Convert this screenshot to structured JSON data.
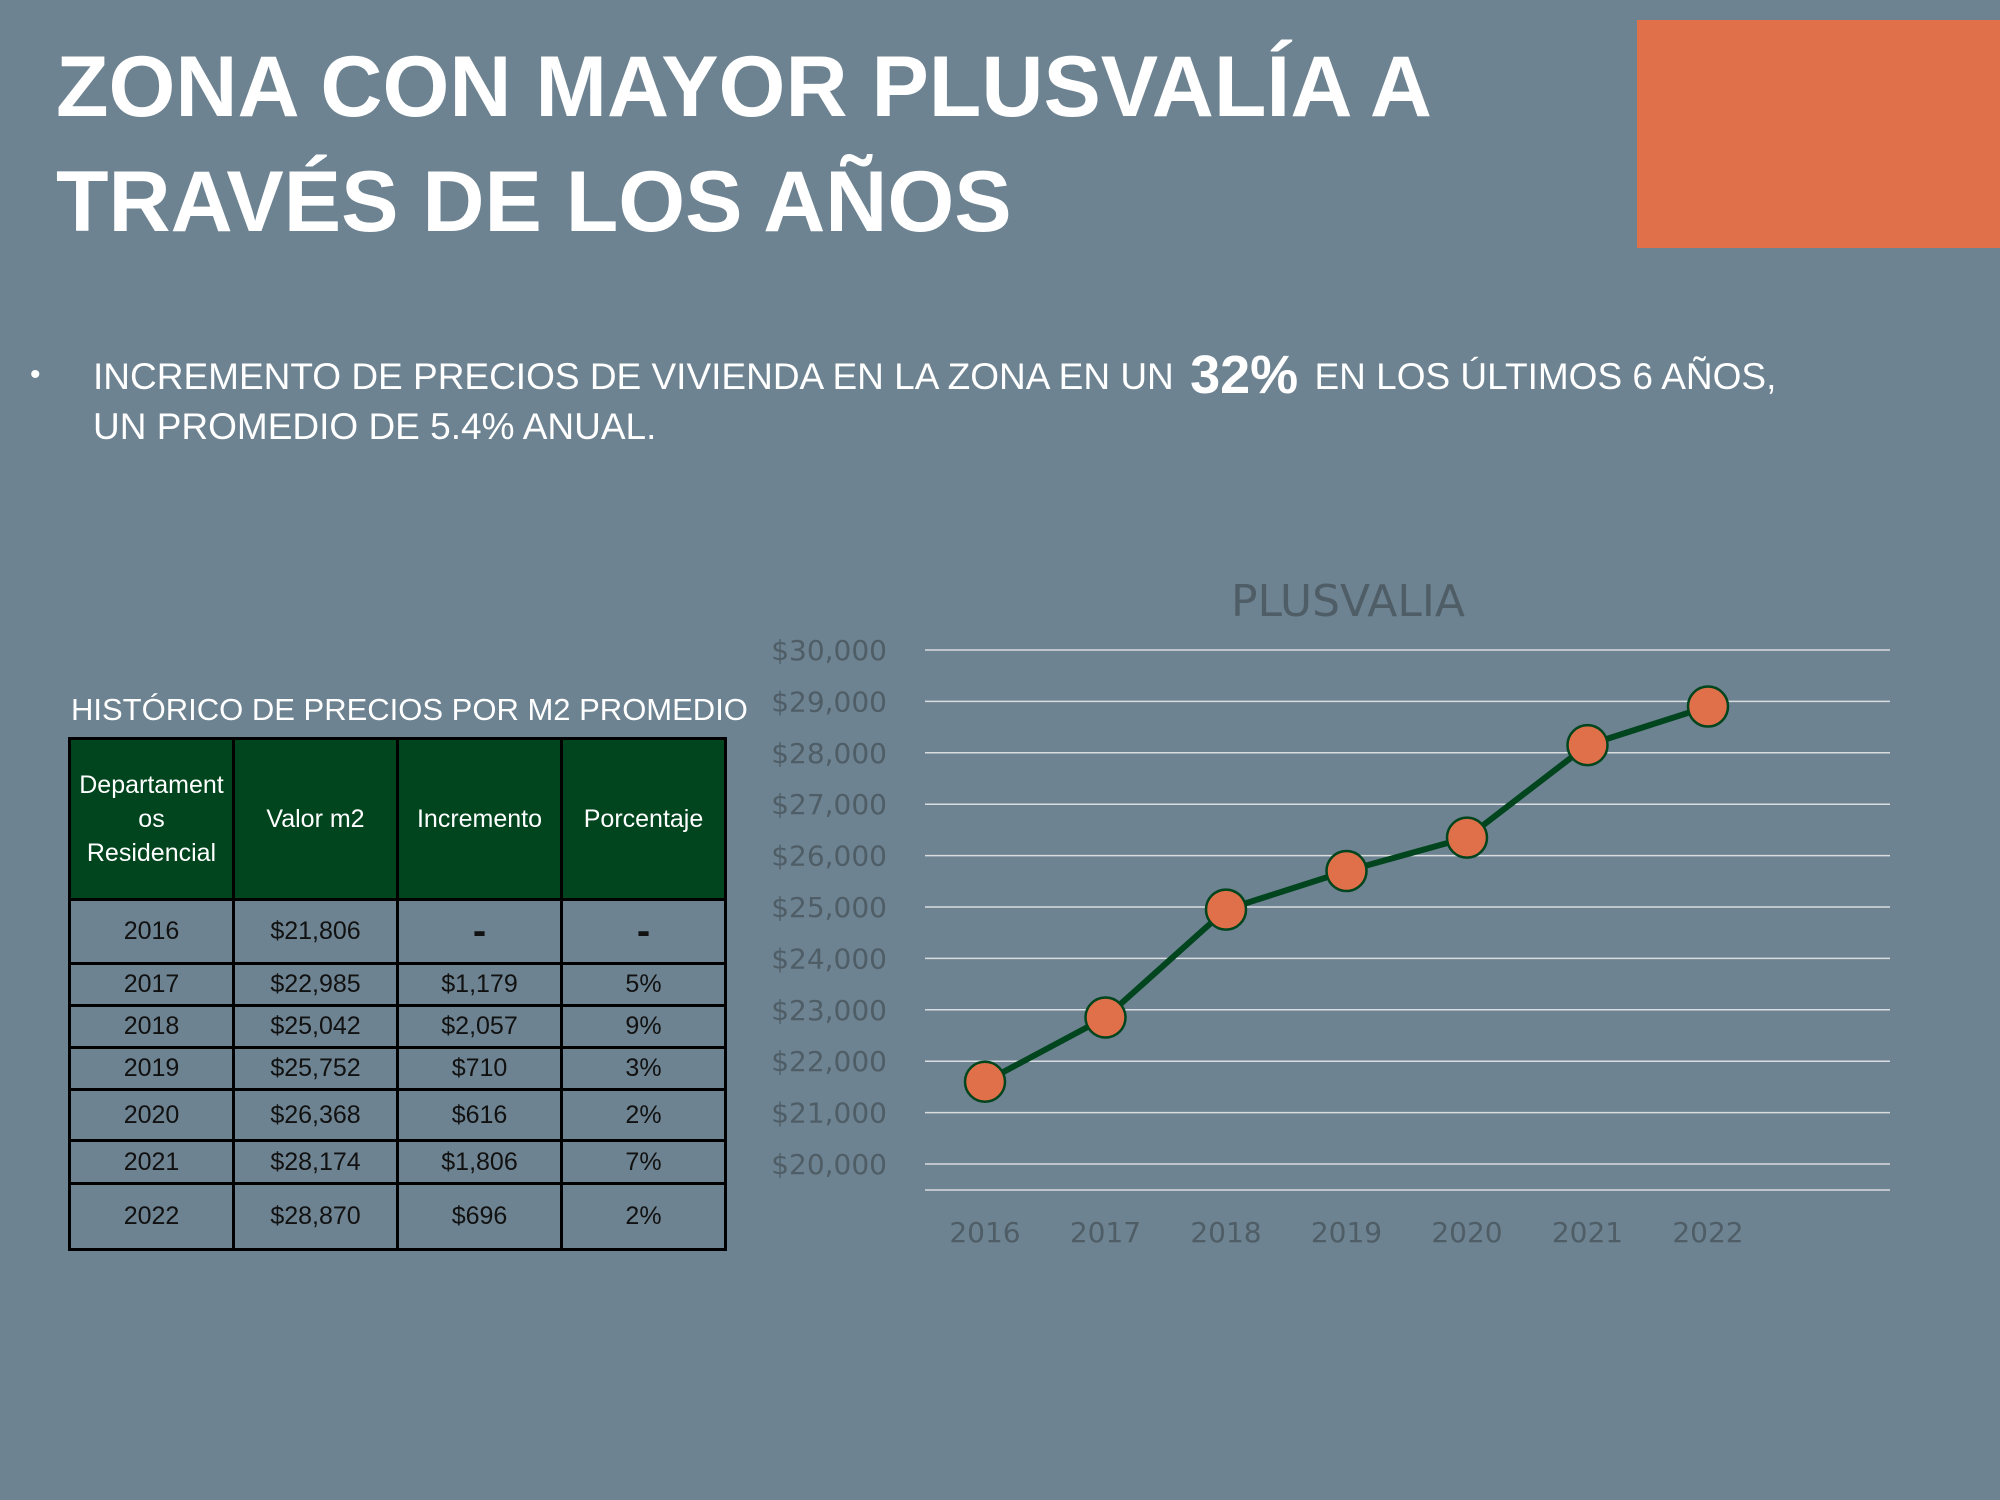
{
  "slide": {
    "title_line1": "ZONA CON MAYOR PLUSVALÍA A",
    "title_line2": "TRAVÉS DE LOS AÑOS",
    "accent_color": "#e07049"
  },
  "bullet": {
    "marker": "•",
    "text_before": "INCREMENTO DE PRECIOS DE VIVIENDA EN LA ZONA EN UN",
    "highlight": "32%",
    "text_after": "EN LOS ÚLTIMOS 6 AÑOS,",
    "line2": "UN PROMEDIO DE 5.4% ANUAL."
  },
  "table": {
    "caption": "HISTÓRICO DE PRECIOS POR M2 PROMEDIO",
    "header_color": "#00451d",
    "headers": [
      "Departamentos Residencial",
      "Valor m2",
      "Incremento",
      "Porcentaje"
    ],
    "header_first_lines": [
      "Departament",
      "os",
      "Residencial"
    ],
    "rows": [
      {
        "year": "2016",
        "valor": "$21,806",
        "incremento": "-",
        "porcentaje": "-"
      },
      {
        "year": "2017",
        "valor": "$22,985",
        "incremento": "$1,179",
        "porcentaje": "5%"
      },
      {
        "year": "2018",
        "valor": "$25,042",
        "incremento": "$2,057",
        "porcentaje": "9%"
      },
      {
        "year": "2019",
        "valor": "$25,752",
        "incremento": "$710",
        "porcentaje": "3%"
      },
      {
        "year": "2020",
        "valor": "$26,368",
        "incremento": "$616",
        "porcentaje": "2%"
      },
      {
        "year": "2021",
        "valor": "$28,174",
        "incremento": "$1,806",
        "porcentaje": "7%"
      },
      {
        "year": "2022",
        "valor": "$28,870",
        "incremento": "$696",
        "porcentaje": "2%"
      }
    ]
  },
  "chart_data": {
    "type": "line",
    "title": "PLUSVALIA",
    "categories": [
      "2016",
      "2017",
      "2018",
      "2019",
      "2020",
      "2021",
      "2022"
    ],
    "series": [
      {
        "values": [
          21600,
          22850,
          24950,
          25700,
          26350,
          28150,
          28900
        ]
      }
    ],
    "ylim": [
      20000,
      30000
    ],
    "yticks": [
      "$30,000",
      "$29,000",
      "$28,000",
      "$27,000",
      "$26,000",
      "$25,000",
      "$24,000",
      "$23,000",
      "$22,000",
      "$21,000",
      "$20,000"
    ],
    "grid": true,
    "line_color": "#00451d",
    "marker_color": "#e07049",
    "grid_color": "#d9dde0",
    "text_color": "#4f5d66"
  }
}
